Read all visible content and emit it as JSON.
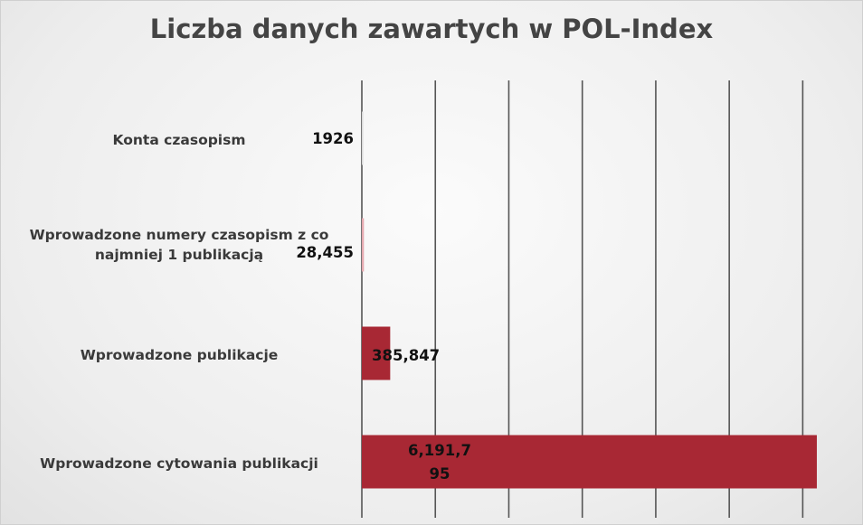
{
  "chart_data": {
    "type": "bar",
    "orientation": "horizontal",
    "title": "Liczba danych zawartych w POL-Index",
    "categories": [
      "Konta czasopism",
      "Wprowadzone numery czasopism z co najmniej 1 publikacją",
      "Wprowadzone publikacje",
      "Wprowadzone cytowania publikacji"
    ],
    "values": [
      1926,
      28455,
      385847,
      6191795
    ],
    "value_labels": [
      "1926",
      "28,455",
      "385,847",
      "6,191,795"
    ],
    "colors": [
      "#d9d9d9",
      "#e6aab0",
      "#a82834",
      "#a82834"
    ],
    "xlim": [
      0,
      6500000
    ],
    "xticks": [
      0,
      1000000,
      2000000,
      3000000,
      4000000,
      5000000,
      6000000
    ],
    "grid": true
  }
}
